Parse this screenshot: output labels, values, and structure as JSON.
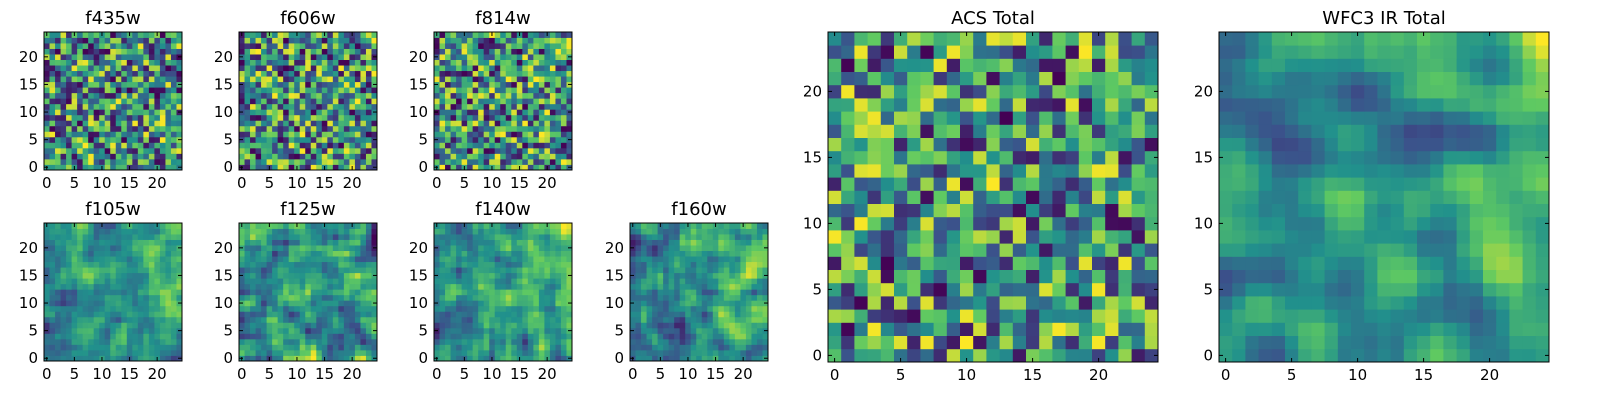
{
  "figure": {
    "colormap": [
      "#440154",
      "#3b528b",
      "#21918c",
      "#5ec962",
      "#fde725"
    ]
  },
  "chart_data": [
    {
      "type": "heatmap",
      "title": "f435w",
      "grid_size": 25,
      "xticks": [
        0,
        5,
        10,
        15,
        20
      ],
      "yticks": [
        0,
        5,
        10,
        15,
        20
      ],
      "grid": false
    },
    {
      "type": "heatmap",
      "title": "f606w",
      "grid_size": 25,
      "xticks": [
        0,
        5,
        10,
        15,
        20
      ],
      "yticks": [
        0,
        5,
        10,
        15,
        20
      ],
      "grid": false
    },
    {
      "type": "heatmap",
      "title": "f814w",
      "grid_size": 25,
      "xticks": [
        0,
        5,
        10,
        15,
        20
      ],
      "yticks": [
        0,
        5,
        10,
        15,
        20
      ],
      "grid": false
    },
    {
      "type": "heatmap",
      "title": "f105w",
      "grid_size": 25,
      "xticks": [
        0,
        5,
        10,
        15,
        20
      ],
      "yticks": [
        0,
        5,
        10,
        15,
        20
      ],
      "grid": false
    },
    {
      "type": "heatmap",
      "title": "f125w",
      "grid_size": 25,
      "xticks": [
        0,
        5,
        10,
        15,
        20
      ],
      "yticks": [
        0,
        5,
        10,
        15,
        20
      ],
      "grid": false
    },
    {
      "type": "heatmap",
      "title": "f140w",
      "grid_size": 25,
      "xticks": [
        0,
        5,
        10,
        15,
        20
      ],
      "yticks": [
        0,
        5,
        10,
        15,
        20
      ],
      "grid": false
    },
    {
      "type": "heatmap",
      "title": "f160w",
      "grid_size": 25,
      "xticks": [
        0,
        5,
        10,
        15,
        20
      ],
      "yticks": [
        0,
        5,
        10,
        15,
        20
      ],
      "grid": false
    },
    {
      "type": "heatmap",
      "title": "ACS Total",
      "grid_size": 25,
      "xticks": [
        0,
        5,
        10,
        15,
        20
      ],
      "yticks": [
        0,
        5,
        10,
        15,
        20
      ],
      "grid": false
    },
    {
      "type": "heatmap",
      "title": "WFC3 IR Total",
      "grid_size": 25,
      "xticks": [
        0,
        5,
        10,
        15,
        20
      ],
      "yticks": [
        0,
        5,
        10,
        15,
        20
      ],
      "grid": false
    }
  ]
}
